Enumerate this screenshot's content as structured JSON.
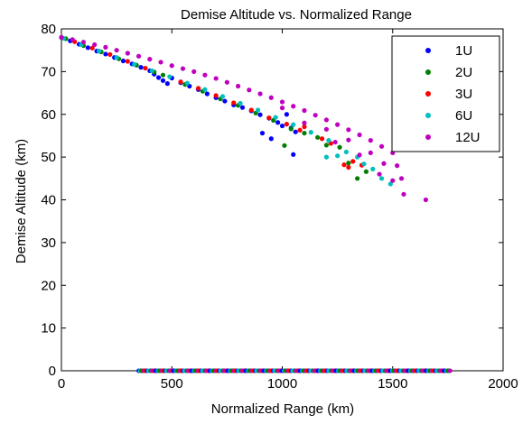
{
  "chart_data": {
    "type": "scatter",
    "title": "Demise Altitude vs. Normalized Range",
    "xlabel": "Normalized Range (km)",
    "ylabel": "Demise Altitude (km)",
    "xlim": [
      0,
      2000
    ],
    "ylim": [
      0,
      80
    ],
    "x_ticks": [
      0,
      500,
      1000,
      1500,
      2000
    ],
    "y_ticks": [
      0,
      10,
      20,
      30,
      40,
      50,
      60,
      70,
      80
    ],
    "grid": false,
    "legend_position": "top-right",
    "series": [
      {
        "name": "1U",
        "color": "#0000ff",
        "points": [
          [
            0,
            78
          ],
          [
            40,
            77.2
          ],
          [
            80,
            76.4
          ],
          [
            120,
            75.6
          ],
          [
            160,
            74.8
          ],
          [
            200,
            74.1
          ],
          [
            240,
            73.3
          ],
          [
            280,
            72.5
          ],
          [
            320,
            71.8
          ],
          [
            360,
            71.0
          ],
          [
            400,
            70.2
          ],
          [
            420,
            69.4
          ],
          [
            440,
            68.6
          ],
          [
            460,
            67.9
          ],
          [
            480,
            67.2
          ],
          [
            500,
            68.5
          ],
          [
            540,
            67.4
          ],
          [
            580,
            66.6
          ],
          [
            620,
            65.8
          ],
          [
            660,
            64.8
          ],
          [
            700,
            63.9
          ],
          [
            740,
            63.1
          ],
          [
            780,
            62.2
          ],
          [
            820,
            61.6
          ],
          [
            860,
            60.8
          ],
          [
            900,
            59.9
          ],
          [
            940,
            59.1
          ],
          [
            980,
            58.1
          ],
          [
            1000,
            57.3
          ],
          [
            1020,
            60.0
          ],
          [
            1040,
            56.8
          ],
          [
            1060,
            55.9
          ],
          [
            910,
            55.6
          ],
          [
            950,
            54.3
          ],
          [
            1050,
            50.6
          ]
        ]
      },
      {
        "name": "2U",
        "color": "#008000",
        "points": [
          [
            20,
            77.7
          ],
          [
            100,
            76.1
          ],
          [
            180,
            74.6
          ],
          [
            260,
            73.0
          ],
          [
            340,
            71.5
          ],
          [
            420,
            69.9
          ],
          [
            460,
            69.2
          ],
          [
            560,
            67.0
          ],
          [
            640,
            65.4
          ],
          [
            720,
            63.6
          ],
          [
            800,
            62.1
          ],
          [
            880,
            60.3
          ],
          [
            960,
            58.6
          ],
          [
            1040,
            56.6
          ],
          [
            1100,
            55.6
          ],
          [
            1160,
            54.6
          ],
          [
            1200,
            52.8
          ],
          [
            1260,
            52.3
          ],
          [
            1300,
            48.6
          ],
          [
            1340,
            45.0
          ],
          [
            1010,
            52.7
          ],
          [
            1380,
            46.6
          ]
        ]
      },
      {
        "name": "3U",
        "color": "#ff0000",
        "points": [
          [
            60,
            77.0
          ],
          [
            140,
            75.5
          ],
          [
            220,
            74.0
          ],
          [
            300,
            72.4
          ],
          [
            380,
            70.8
          ],
          [
            540,
            67.6
          ],
          [
            620,
            66.1
          ],
          [
            700,
            64.4
          ],
          [
            780,
            62.7
          ],
          [
            860,
            61.0
          ],
          [
            940,
            59.2
          ],
          [
            1020,
            57.7
          ],
          [
            1080,
            56.3
          ],
          [
            1100,
            57.1
          ],
          [
            1180,
            54.3
          ],
          [
            1220,
            53.2
          ],
          [
            1280,
            48.2
          ],
          [
            1300,
            47.6
          ],
          [
            1320,
            49.0
          ],
          [
            1360,
            48.1
          ]
        ]
      },
      {
        "name": "6U",
        "color": "#00bfbf",
        "points": [
          [
            10,
            77.8
          ],
          [
            90,
            76.3
          ],
          [
            170,
            74.8
          ],
          [
            250,
            73.3
          ],
          [
            330,
            71.7
          ],
          [
            410,
            70.2
          ],
          [
            490,
            68.8
          ],
          [
            570,
            67.3
          ],
          [
            650,
            65.8
          ],
          [
            730,
            64.2
          ],
          [
            810,
            62.6
          ],
          [
            890,
            61.0
          ],
          [
            970,
            59.3
          ],
          [
            1050,
            57.6
          ],
          [
            1130,
            55.8
          ],
          [
            1210,
            53.9
          ],
          [
            1250,
            50.3
          ],
          [
            1290,
            51.2
          ],
          [
            1340,
            50.0
          ],
          [
            1370,
            48.4
          ],
          [
            1410,
            47.2
          ],
          [
            1450,
            45.0
          ],
          [
            1490,
            43.7
          ],
          [
            1200,
            50.0
          ]
        ]
      },
      {
        "name": "12U",
        "color": "#bf00bf",
        "points": [
          [
            0,
            78
          ],
          [
            50,
            77.5
          ],
          [
            100,
            76.9
          ],
          [
            150,
            76.3
          ],
          [
            200,
            75.7
          ],
          [
            250,
            75.0
          ],
          [
            300,
            74.3
          ],
          [
            350,
            73.6
          ],
          [
            400,
            72.9
          ],
          [
            450,
            72.2
          ],
          [
            500,
            71.4
          ],
          [
            550,
            70.7
          ],
          [
            600,
            70.0
          ],
          [
            650,
            69.2
          ],
          [
            700,
            68.4
          ],
          [
            750,
            67.5
          ],
          [
            800,
            66.6
          ],
          [
            850,
            65.7
          ],
          [
            900,
            64.8
          ],
          [
            950,
            63.9
          ],
          [
            1000,
            62.9
          ],
          [
            1050,
            61.9
          ],
          [
            1100,
            60.9
          ],
          [
            1150,
            59.8
          ],
          [
            1200,
            58.7
          ],
          [
            1250,
            57.6
          ],
          [
            1300,
            56.4
          ],
          [
            1350,
            55.2
          ],
          [
            1400,
            53.9
          ],
          [
            1450,
            52.5
          ],
          [
            1500,
            51.0
          ],
          [
            1520,
            48.0
          ],
          [
            1540,
            45.0
          ],
          [
            1550,
            41.3
          ],
          [
            1650,
            40.0
          ],
          [
            1000,
            61.5
          ],
          [
            1100,
            58.0
          ],
          [
            1200,
            56.5
          ],
          [
            1300,
            54.0
          ],
          [
            1400,
            51.0
          ],
          [
            1460,
            48.5
          ],
          [
            1500,
            44.5
          ],
          [
            1240,
            53.5
          ],
          [
            1350,
            50.5
          ],
          [
            1440,
            46.0
          ]
        ]
      }
    ],
    "zero_band": {
      "y": 0,
      "x_start": 350,
      "x_end": 1760,
      "colors": [
        "#0000ff",
        "#008000",
        "#ff0000",
        "#00bfbf",
        "#bf00bf"
      ]
    }
  }
}
